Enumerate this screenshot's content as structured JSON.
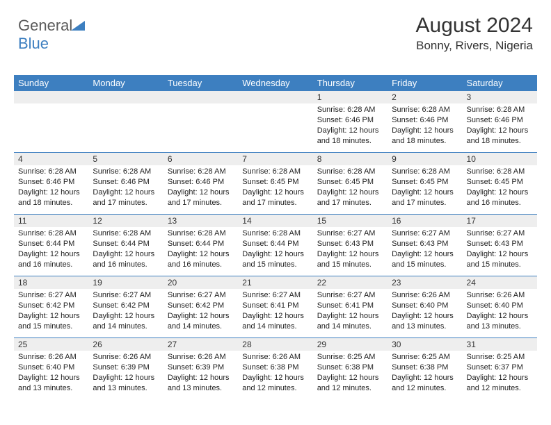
{
  "logo": {
    "text_gray": "General",
    "text_blue": "Blue"
  },
  "title": "August 2024",
  "location": "Bonny, Rivers, Nigeria",
  "colors": {
    "header_bg": "#3d7fc0",
    "header_text": "#ffffff",
    "daynum_bg": "#eeeeee",
    "week_divider": "#3d7fc0",
    "body_text": "#222222",
    "page_bg": "#ffffff"
  },
  "dayNames": [
    "Sunday",
    "Monday",
    "Tuesday",
    "Wednesday",
    "Thursday",
    "Friday",
    "Saturday"
  ],
  "weeks": [
    [
      {
        "num": "",
        "sunrise": "",
        "sunset": "",
        "daylight": ""
      },
      {
        "num": "",
        "sunrise": "",
        "sunset": "",
        "daylight": ""
      },
      {
        "num": "",
        "sunrise": "",
        "sunset": "",
        "daylight": ""
      },
      {
        "num": "",
        "sunrise": "",
        "sunset": "",
        "daylight": ""
      },
      {
        "num": "1",
        "sunrise": "Sunrise: 6:28 AM",
        "sunset": "Sunset: 6:46 PM",
        "daylight": "Daylight: 12 hours and 18 minutes."
      },
      {
        "num": "2",
        "sunrise": "Sunrise: 6:28 AM",
        "sunset": "Sunset: 6:46 PM",
        "daylight": "Daylight: 12 hours and 18 minutes."
      },
      {
        "num": "3",
        "sunrise": "Sunrise: 6:28 AM",
        "sunset": "Sunset: 6:46 PM",
        "daylight": "Daylight: 12 hours and 18 minutes."
      }
    ],
    [
      {
        "num": "4",
        "sunrise": "Sunrise: 6:28 AM",
        "sunset": "Sunset: 6:46 PM",
        "daylight": "Daylight: 12 hours and 18 minutes."
      },
      {
        "num": "5",
        "sunrise": "Sunrise: 6:28 AM",
        "sunset": "Sunset: 6:46 PM",
        "daylight": "Daylight: 12 hours and 17 minutes."
      },
      {
        "num": "6",
        "sunrise": "Sunrise: 6:28 AM",
        "sunset": "Sunset: 6:46 PM",
        "daylight": "Daylight: 12 hours and 17 minutes."
      },
      {
        "num": "7",
        "sunrise": "Sunrise: 6:28 AM",
        "sunset": "Sunset: 6:45 PM",
        "daylight": "Daylight: 12 hours and 17 minutes."
      },
      {
        "num": "8",
        "sunrise": "Sunrise: 6:28 AM",
        "sunset": "Sunset: 6:45 PM",
        "daylight": "Daylight: 12 hours and 17 minutes."
      },
      {
        "num": "9",
        "sunrise": "Sunrise: 6:28 AM",
        "sunset": "Sunset: 6:45 PM",
        "daylight": "Daylight: 12 hours and 17 minutes."
      },
      {
        "num": "10",
        "sunrise": "Sunrise: 6:28 AM",
        "sunset": "Sunset: 6:45 PM",
        "daylight": "Daylight: 12 hours and 16 minutes."
      }
    ],
    [
      {
        "num": "11",
        "sunrise": "Sunrise: 6:28 AM",
        "sunset": "Sunset: 6:44 PM",
        "daylight": "Daylight: 12 hours and 16 minutes."
      },
      {
        "num": "12",
        "sunrise": "Sunrise: 6:28 AM",
        "sunset": "Sunset: 6:44 PM",
        "daylight": "Daylight: 12 hours and 16 minutes."
      },
      {
        "num": "13",
        "sunrise": "Sunrise: 6:28 AM",
        "sunset": "Sunset: 6:44 PM",
        "daylight": "Daylight: 12 hours and 16 minutes."
      },
      {
        "num": "14",
        "sunrise": "Sunrise: 6:28 AM",
        "sunset": "Sunset: 6:44 PM",
        "daylight": "Daylight: 12 hours and 15 minutes."
      },
      {
        "num": "15",
        "sunrise": "Sunrise: 6:27 AM",
        "sunset": "Sunset: 6:43 PM",
        "daylight": "Daylight: 12 hours and 15 minutes."
      },
      {
        "num": "16",
        "sunrise": "Sunrise: 6:27 AM",
        "sunset": "Sunset: 6:43 PM",
        "daylight": "Daylight: 12 hours and 15 minutes."
      },
      {
        "num": "17",
        "sunrise": "Sunrise: 6:27 AM",
        "sunset": "Sunset: 6:43 PM",
        "daylight": "Daylight: 12 hours and 15 minutes."
      }
    ],
    [
      {
        "num": "18",
        "sunrise": "Sunrise: 6:27 AM",
        "sunset": "Sunset: 6:42 PM",
        "daylight": "Daylight: 12 hours and 15 minutes."
      },
      {
        "num": "19",
        "sunrise": "Sunrise: 6:27 AM",
        "sunset": "Sunset: 6:42 PM",
        "daylight": "Daylight: 12 hours and 14 minutes."
      },
      {
        "num": "20",
        "sunrise": "Sunrise: 6:27 AM",
        "sunset": "Sunset: 6:42 PM",
        "daylight": "Daylight: 12 hours and 14 minutes."
      },
      {
        "num": "21",
        "sunrise": "Sunrise: 6:27 AM",
        "sunset": "Sunset: 6:41 PM",
        "daylight": "Daylight: 12 hours and 14 minutes."
      },
      {
        "num": "22",
        "sunrise": "Sunrise: 6:27 AM",
        "sunset": "Sunset: 6:41 PM",
        "daylight": "Daylight: 12 hours and 14 minutes."
      },
      {
        "num": "23",
        "sunrise": "Sunrise: 6:26 AM",
        "sunset": "Sunset: 6:40 PM",
        "daylight": "Daylight: 12 hours and 13 minutes."
      },
      {
        "num": "24",
        "sunrise": "Sunrise: 6:26 AM",
        "sunset": "Sunset: 6:40 PM",
        "daylight": "Daylight: 12 hours and 13 minutes."
      }
    ],
    [
      {
        "num": "25",
        "sunrise": "Sunrise: 6:26 AM",
        "sunset": "Sunset: 6:40 PM",
        "daylight": "Daylight: 12 hours and 13 minutes."
      },
      {
        "num": "26",
        "sunrise": "Sunrise: 6:26 AM",
        "sunset": "Sunset: 6:39 PM",
        "daylight": "Daylight: 12 hours and 13 minutes."
      },
      {
        "num": "27",
        "sunrise": "Sunrise: 6:26 AM",
        "sunset": "Sunset: 6:39 PM",
        "daylight": "Daylight: 12 hours and 13 minutes."
      },
      {
        "num": "28",
        "sunrise": "Sunrise: 6:26 AM",
        "sunset": "Sunset: 6:38 PM",
        "daylight": "Daylight: 12 hours and 12 minutes."
      },
      {
        "num": "29",
        "sunrise": "Sunrise: 6:25 AM",
        "sunset": "Sunset: 6:38 PM",
        "daylight": "Daylight: 12 hours and 12 minutes."
      },
      {
        "num": "30",
        "sunrise": "Sunrise: 6:25 AM",
        "sunset": "Sunset: 6:38 PM",
        "daylight": "Daylight: 12 hours and 12 minutes."
      },
      {
        "num": "31",
        "sunrise": "Sunrise: 6:25 AM",
        "sunset": "Sunset: 6:37 PM",
        "daylight": "Daylight: 12 hours and 12 minutes."
      }
    ]
  ]
}
